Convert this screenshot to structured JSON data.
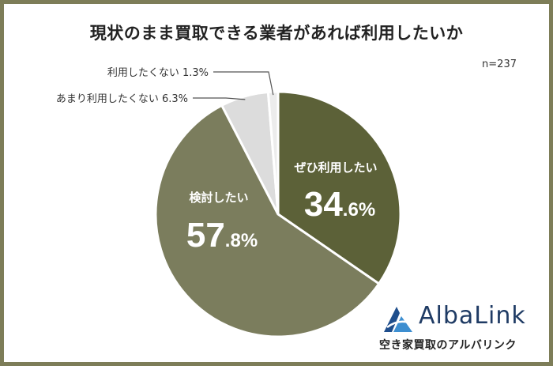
{
  "title": "現状のまま買取できる業者があれば利用したいか",
  "sample": "n=237",
  "chart_data": {
    "type": "pie",
    "slices": [
      {
        "label": "ぜひ利用したい",
        "value": 34.6,
        "num": "34",
        "dec": ".6%",
        "color": "#5c6138"
      },
      {
        "label": "検討したい",
        "value": 57.8,
        "num": "57",
        "dec": ".8%",
        "color": "#7b7d5d"
      },
      {
        "label": "あまり利用したくない",
        "value": 6.3,
        "text": "あまり利用したくない 6.3%",
        "color": "#dcdcdc"
      },
      {
        "label": "利用したくない",
        "value": 1.3,
        "text": "利用したくない 1.3%",
        "color": "#ececec"
      }
    ]
  },
  "logo": {
    "name": "AlbaLink",
    "tagline": "空き家買取のアルバリンク",
    "colors": [
      "#1f4e8c",
      "#3d8ed0"
    ]
  }
}
